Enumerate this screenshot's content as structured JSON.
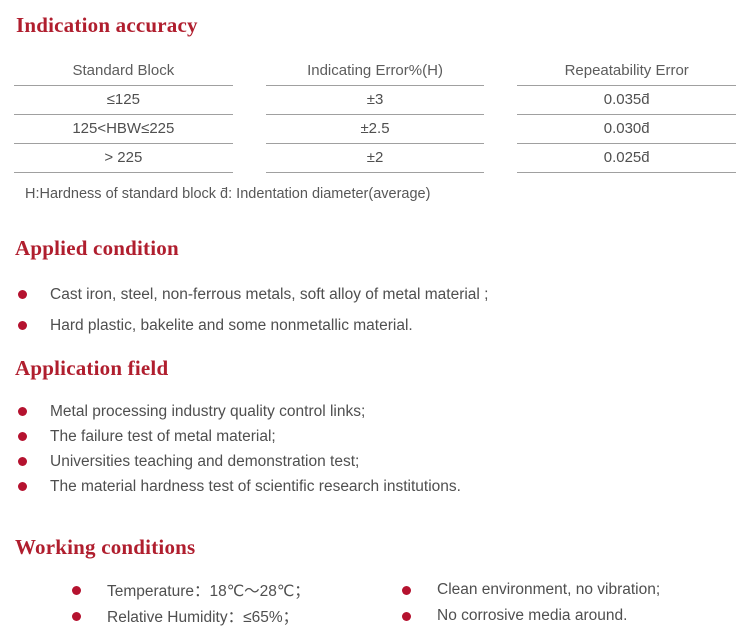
{
  "colors": {
    "heading_red": "#b01e2e",
    "bullet_red": "#b5122f",
    "body_text": "#4f4f4f",
    "table_line": "#a0a0a0"
  },
  "sections": {
    "indication_accuracy": {
      "title": "Indication accuracy",
      "table": {
        "columns": [
          {
            "header": "Standard Block",
            "cells": [
              "≤125",
              "125<HBW≤225",
              "> 225"
            ]
          },
          {
            "header": "Indicating Error%(H)",
            "cells": [
              "±3",
              "±2.5",
              "±2"
            ]
          },
          {
            "header": "Repeatability Error",
            "cells": [
              "0.035d̄",
              "0.030d̄",
              "0.025d̄"
            ]
          }
        ],
        "note": "H:Hardness of standard block  d̄: Indentation diameter(average)"
      }
    },
    "applied_condition": {
      "title": "Applied condition",
      "items": [
        "Cast iron, steel, non-ferrous metals, soft alloy of metal material ;",
        "Hard plastic, bakelite and some nonmetallic material."
      ]
    },
    "application_field": {
      "title": "Application field",
      "items": [
        "Metal processing industry quality control links;",
        "The failure test of metal material;",
        "Universities teaching and demonstration test;",
        "The material hardness test of scientific research institutions."
      ]
    },
    "working_conditions": {
      "title": "Working conditions",
      "left_items": [
        "Temperature：18℃～28℃；",
        "Relative Humidity：≤65%；"
      ],
      "right_items": [
        "Clean environment, no vibration;",
        "No corrosive media around."
      ]
    }
  }
}
